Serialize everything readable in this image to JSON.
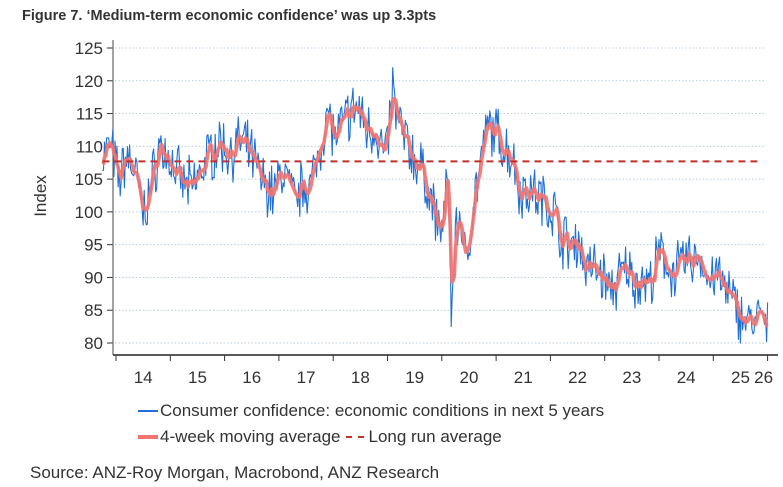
{
  "title": "Figure 7. ‘Medium-term economic confidence’ was up 3.3pts",
  "source": "Source: ANZ-Roy Morgan, Macrobond, ANZ Research",
  "legend": {
    "series_1": "Consumer confidence: economic conditions in next 5 years",
    "series_2": "4-week moving average",
    "series_3": "Long run average"
  },
  "colors": {
    "weekly": "#1f6fd6",
    "moving_average": "#f27470",
    "long_run": "#c0302b",
    "grid": "#b8cfe0",
    "axis": "#333333"
  },
  "chart_data": {
    "type": "line",
    "title": "Figure 7. ‘Medium-term economic confidence’ was up 3.3pts",
    "xlabel": "",
    "ylabel": "Index",
    "xlim": [
      2013.7,
      2026.15
    ],
    "ylim": [
      79,
      127
    ],
    "yticks": [
      80,
      85,
      90,
      95,
      100,
      105,
      110,
      115,
      120,
      125
    ],
    "xticks": [
      "14",
      "15",
      "16",
      "17",
      "18",
      "19",
      "20",
      "21",
      "22",
      "23",
      "24",
      "25",
      "26"
    ],
    "grid": true,
    "legend_position": "bottom",
    "long_run_average": 107.7,
    "anchors": {
      "x": [
        2013.75,
        2013.9,
        2014.05,
        2014.2,
        2014.35,
        2014.5,
        2014.65,
        2014.8,
        2015.0,
        2015.2,
        2015.4,
        2015.55,
        2015.7,
        2015.9,
        2016.1,
        2016.3,
        2016.5,
        2016.7,
        2016.9,
        2017.1,
        2017.3,
        2017.45,
        2017.6,
        2017.75,
        2017.9,
        2018.05,
        2018.25,
        2018.45,
        2018.6,
        2018.8,
        2018.95,
        2019.1,
        2019.25,
        2019.4,
        2019.55,
        2019.7,
        2019.85,
        2019.95,
        2020.05,
        2020.12,
        2020.18,
        2020.25,
        2020.35,
        2020.45,
        2020.55,
        2020.7,
        2020.85,
        2021.0,
        2021.15,
        2021.3,
        2021.45,
        2021.6,
        2021.75,
        2021.9,
        2022.05,
        2022.2,
        2022.35,
        2022.5,
        2022.65,
        2022.8,
        2022.95,
        2023.1,
        2023.25,
        2023.4,
        2023.55,
        2023.7,
        2023.85,
        2024.0,
        2024.15,
        2024.3,
        2024.45,
        2024.6,
        2024.75,
        2024.9,
        2025.05,
        2025.2,
        2025.35,
        2025.5,
        2025.65,
        2025.8,
        2025.92,
        2026.0
      ],
      "moving_average": [
        108.5,
        110.2,
        104.8,
        108.6,
        106.2,
        99.5,
        104.0,
        110.0,
        108.0,
        104.5,
        103.5,
        106.0,
        108.5,
        110.5,
        109.0,
        110.8,
        108.5,
        104.5,
        103.0,
        106.5,
        101.0,
        104.5,
        104.0,
        110.0,
        115.0,
        111.0,
        114.5,
        116.0,
        113.0,
        112.5,
        108.0,
        117.0,
        112.5,
        109.5,
        107.5,
        105.0,
        100.5,
        97.0,
        99.5,
        106.0,
        85.5,
        96.5,
        99.5,
        91.0,
        100.0,
        106.5,
        113.0,
        112.0,
        110.0,
        108.5,
        103.0,
        103.5,
        102.5,
        101.5,
        100.5,
        96.5,
        94.5,
        96.0,
        91.5,
        91.5,
        90.5,
        88.0,
        89.5,
        91.5,
        89.5,
        89.5,
        89.0,
        93.5,
        92.0,
        90.5,
        92.5,
        92.5,
        93.5,
        89.5,
        90.5,
        88.5,
        86.5,
        84.5,
        83.0,
        83.5,
        84.0,
        82.0
      ],
      "weekly_extremes": {
        "max": {
          "x": 2019.1,
          "y": 122
        },
        "min_2020": {
          "x": 2020.18,
          "y": 82.5
        },
        "min_2026": {
          "x": 2025.98,
          "y": 80.2
        }
      }
    }
  }
}
